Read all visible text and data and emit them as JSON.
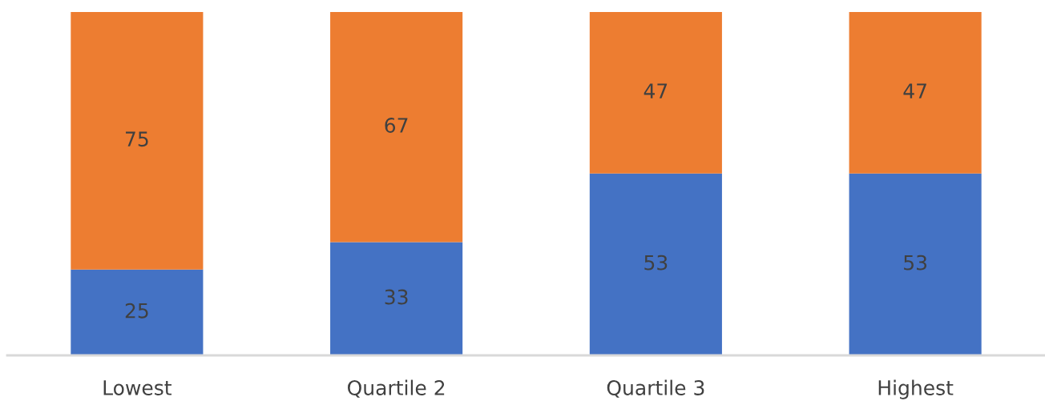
{
  "chart_data": {
    "type": "bar",
    "stacked": true,
    "categories": [
      "Lowest",
      "Quartile 2",
      "Quartile 3",
      "Highest"
    ],
    "series": [
      {
        "color": "#4472c4",
        "values": [
          25,
          33,
          53,
          53
        ]
      },
      {
        "color": "#ed7d31",
        "values": [
          75,
          67,
          47,
          47
        ]
      }
    ],
    "data_labels": true,
    "grid": false,
    "legend": false,
    "tick_labels": "x"
  }
}
